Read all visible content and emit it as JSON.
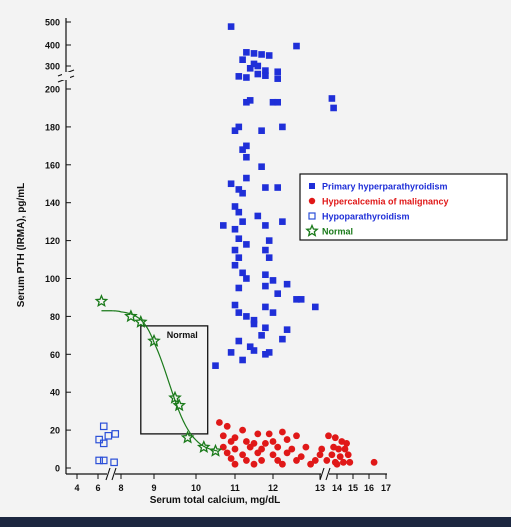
{
  "chart_data": {
    "type": "scatter",
    "xlabel": "Serum total calcium, mg/dL",
    "ylabel": "Serum PTH (IRMA), pg/mL",
    "x_ticks": [
      "4",
      "6",
      "8",
      "9",
      "10",
      "11",
      "12",
      "13",
      "14",
      "15",
      "16",
      "17"
    ],
    "y_ticks_lower": [
      "0",
      "20",
      "40",
      "60",
      "80",
      "100",
      "120",
      "140",
      "160",
      "180",
      "200"
    ],
    "y_ticks_upper": [
      "300",
      "400",
      "500"
    ],
    "axis_breaks": "x between 6 and 8, x between 12 and 13, y between 200 and 300",
    "legend_position": "right",
    "colors": {
      "primary": "#1f2fd8",
      "malignancy": "#e01818",
      "hypo": "#2b4fd8",
      "normal": "#1a7a1a"
    },
    "annotation_box": {
      "label": "Normal",
      "x_range": [
        8.6,
        10.3
      ],
      "y_range": [
        18,
        75
      ]
    },
    "series": [
      {
        "name": "Primary hyperparathyroidism",
        "marker": "filled-square",
        "points": [
          [
            10.9,
            480
          ],
          [
            11.3,
            365
          ],
          [
            11.5,
            360
          ],
          [
            11.7,
            355
          ],
          [
            11.9,
            350
          ],
          [
            11.2,
            330
          ],
          [
            11.5,
            310
          ],
          [
            11.6,
            300
          ],
          [
            11.4,
            290
          ],
          [
            11.8,
            280
          ],
          [
            12.1,
            275
          ],
          [
            11.6,
            265
          ],
          [
            11.8,
            258
          ],
          [
            11.1,
            255
          ],
          [
            11.3,
            250
          ],
          [
            12.1,
            245
          ],
          [
            12.5,
            395
          ],
          [
            13.7,
            195
          ],
          [
            13.8,
            190
          ],
          [
            11.4,
            194
          ],
          [
            11.3,
            193
          ],
          [
            12.0,
            193
          ],
          [
            12.1,
            193
          ],
          [
            11.1,
            180
          ],
          [
            11.7,
            178
          ],
          [
            12.2,
            180
          ],
          [
            11.0,
            178
          ],
          [
            11.3,
            170
          ],
          [
            11.2,
            168
          ],
          [
            11.3,
            164
          ],
          [
            11.7,
            159
          ],
          [
            11.3,
            153
          ],
          [
            10.9,
            150
          ],
          [
            11.1,
            147
          ],
          [
            11.2,
            145
          ],
          [
            11.8,
            148
          ],
          [
            12.1,
            148
          ],
          [
            11.0,
            138
          ],
          [
            11.1,
            135
          ],
          [
            11.6,
            133
          ],
          [
            11.2,
            130
          ],
          [
            10.7,
            128
          ],
          [
            11.0,
            126
          ],
          [
            11.8,
            128
          ],
          [
            12.2,
            130
          ],
          [
            11.1,
            121
          ],
          [
            11.3,
            118
          ],
          [
            11.9,
            120
          ],
          [
            11.0,
            115
          ],
          [
            11.1,
            111
          ],
          [
            11.8,
            115
          ],
          [
            11.9,
            111
          ],
          [
            11.0,
            107
          ],
          [
            11.2,
            103
          ],
          [
            11.3,
            100
          ],
          [
            11.8,
            102
          ],
          [
            12.0,
            99
          ],
          [
            12.3,
            97
          ],
          [
            11.1,
            95
          ],
          [
            11.8,
            96
          ],
          [
            12.1,
            92
          ],
          [
            12.5,
            89
          ],
          [
            12.6,
            89
          ],
          [
            11.0,
            86
          ],
          [
            11.8,
            85
          ],
          [
            12.9,
            85
          ],
          [
            11.1,
            82
          ],
          [
            12.0,
            82
          ],
          [
            11.3,
            80
          ],
          [
            11.5,
            78
          ],
          [
            11.5,
            76
          ],
          [
            11.8,
            74
          ],
          [
            12.3,
            73
          ],
          [
            11.7,
            70
          ],
          [
            12.2,
            68
          ],
          [
            11.1,
            67
          ],
          [
            11.4,
            64
          ],
          [
            11.5,
            62
          ],
          [
            10.9,
            61
          ],
          [
            11.9,
            61
          ],
          [
            11.8,
            60
          ],
          [
            11.2,
            57
          ],
          [
            10.5,
            54
          ]
        ]
      },
      {
        "name": "Hypercalcemia of malignancy",
        "marker": "filled-circle",
        "points": [
          [
            10.6,
            24
          ],
          [
            10.8,
            22
          ],
          [
            11.2,
            20
          ],
          [
            10.7,
            17
          ],
          [
            11.0,
            16
          ],
          [
            11.6,
            18
          ],
          [
            11.9,
            18
          ],
          [
            12.2,
            19
          ],
          [
            10.9,
            14
          ],
          [
            11.3,
            14
          ],
          [
            11.5,
            13
          ],
          [
            11.8,
            13
          ],
          [
            12.0,
            14
          ],
          [
            12.3,
            15
          ],
          [
            12.5,
            17
          ],
          [
            13.5,
            17
          ],
          [
            13.9,
            16
          ],
          [
            14.3,
            14
          ],
          [
            14.6,
            13
          ],
          [
            10.7,
            11
          ],
          [
            11.0,
            10
          ],
          [
            11.4,
            11
          ],
          [
            11.7,
            10
          ],
          [
            12.1,
            11
          ],
          [
            12.4,
            10
          ],
          [
            12.7,
            11
          ],
          [
            13.1,
            10
          ],
          [
            13.8,
            11
          ],
          [
            14.1,
            10
          ],
          [
            14.5,
            10
          ],
          [
            10.8,
            8
          ],
          [
            11.2,
            7
          ],
          [
            11.6,
            8
          ],
          [
            12.0,
            7
          ],
          [
            12.3,
            8
          ],
          [
            12.6,
            6
          ],
          [
            13.0,
            7
          ],
          [
            13.7,
            7
          ],
          [
            14.2,
            6
          ],
          [
            14.7,
            7
          ],
          [
            10.9,
            5
          ],
          [
            11.3,
            4
          ],
          [
            11.7,
            4
          ],
          [
            12.1,
            4
          ],
          [
            12.5,
            4
          ],
          [
            12.9,
            4
          ],
          [
            13.4,
            4
          ],
          [
            13.9,
            3
          ],
          [
            14.4,
            3
          ],
          [
            14.8,
            3
          ],
          [
            16.3,
            3
          ],
          [
            11.0,
            2
          ],
          [
            11.5,
            2
          ],
          [
            12.2,
            2
          ],
          [
            12.8,
            2
          ],
          [
            14.0,
            2
          ]
        ]
      },
      {
        "name": "Hypoparathyroidism",
        "marker": "open-square",
        "points": [
          [
            6.1,
            15
          ],
          [
            6.5,
            13
          ],
          [
            6.5,
            22
          ],
          [
            6.9,
            17
          ],
          [
            6.1,
            4
          ],
          [
            6.5,
            4
          ],
          [
            7.5,
            18
          ],
          [
            7.4,
            3
          ]
        ]
      },
      {
        "name": "Normal",
        "marker": "open-star",
        "points": [
          [
            6.3,
            88
          ],
          [
            8.3,
            80
          ],
          [
            8.6,
            77
          ],
          [
            9.0,
            67
          ],
          [
            9.5,
            37
          ],
          [
            9.6,
            33
          ],
          [
            9.8,
            16
          ],
          [
            10.2,
            11
          ],
          [
            10.5,
            9
          ]
        ]
      }
    ]
  }
}
